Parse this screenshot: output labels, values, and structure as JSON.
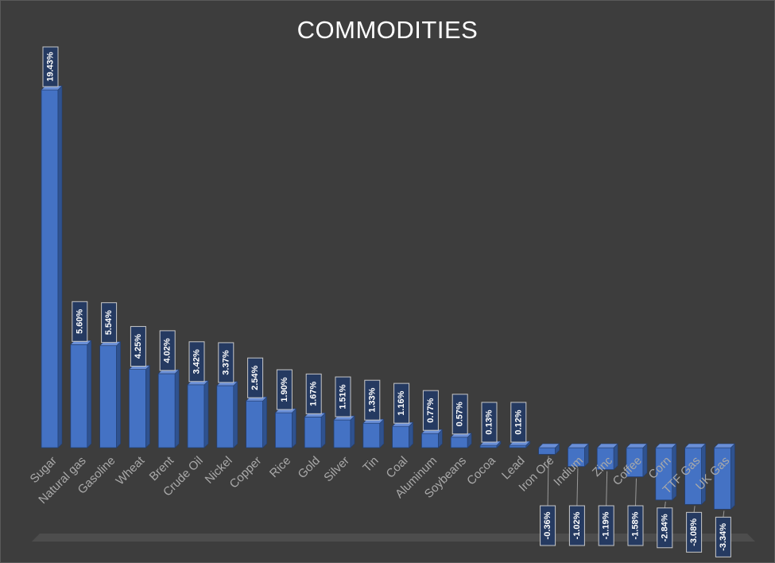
{
  "chart_data": {
    "type": "bar",
    "title": "COMMODITIES",
    "categories": [
      "Sugar",
      "Natural gas",
      "Gasoline",
      "Wheat",
      "Brent",
      "Crude Oil",
      "Nickel",
      "Copper",
      "Rice",
      "Gold",
      "Silver",
      "Tin",
      "Coal",
      "Aluminum",
      "Soybeans",
      "Cocoa",
      "Lead",
      "Iron Ore",
      "Indium",
      "Zinc",
      "Coffee",
      "Corn",
      "TTF Gas",
      "UK Gas"
    ],
    "values": [
      19.43,
      5.6,
      5.54,
      4.25,
      4.02,
      3.42,
      3.37,
      2.54,
      1.9,
      1.67,
      1.51,
      1.33,
      1.16,
      0.77,
      0.57,
      0.13,
      0.12,
      -0.36,
      -1.02,
      -1.19,
      -1.58,
      -2.84,
      -3.08,
      -3.34
    ],
    "data_labels": [
      "19.43%",
      "5.60%",
      "5.54%",
      "4.25%",
      "4.02%",
      "3.42%",
      "3.37%",
      "2.54%",
      "1.90%",
      "1.67%",
      "1.51%",
      "1.33%",
      "1.16%",
      "0.77%",
      "0.57%",
      "0.13%",
      "0.12%",
      "-0.36%",
      "-1.02%",
      "-1.19%",
      "-1.58%",
      "-2.84%",
      "-3.08%",
      "-3.34%"
    ],
    "xlabel": "",
    "ylabel": "",
    "ylim": [
      -3.34,
      19.43
    ],
    "grid": false,
    "legend": "none",
    "style": "3d-column",
    "colors": {
      "background": "#3d3d3d",
      "bar_front": "#4472c4",
      "bar_side": "#2f528f",
      "bar_top": "#6a8fd6",
      "bar_edge": "#243f70",
      "label_box": "#253a61",
      "title": "#ffffff",
      "category_text": "#a9a9a9",
      "floor": "#5b5b5b"
    }
  }
}
